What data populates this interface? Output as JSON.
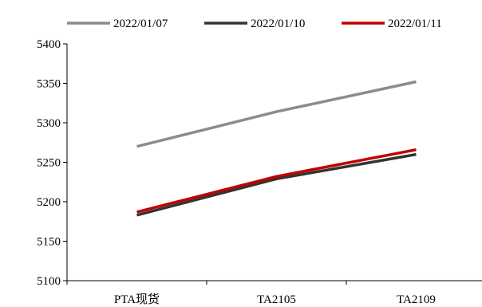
{
  "chart_data": {
    "type": "line",
    "categories": [
      "PTA现货",
      "TA2105",
      "TA2109"
    ],
    "series": [
      {
        "name": "2022/01/07",
        "values": [
          5270,
          5314,
          5352
        ],
        "color": "#8c8c8c"
      },
      {
        "name": "2022/01/10",
        "values": [
          5183,
          5229,
          5260
        ],
        "color": "#333333"
      },
      {
        "name": "2022/01/11",
        "values": [
          5187,
          5232,
          5266
        ],
        "color": "#c00000"
      }
    ],
    "yticks": [
      5100,
      5150,
      5200,
      5250,
      5300,
      5350,
      5400
    ],
    "ylim": [
      5100,
      5400
    ],
    "grid": false,
    "legend_position": "top"
  }
}
